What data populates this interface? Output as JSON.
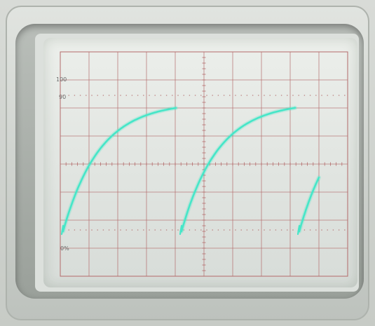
{
  "graticule_labels": {
    "label_100": "100",
    "label_90": "90",
    "label_0pct": "0%"
  },
  "trace_color": "#46e6c8",
  "graticule_color": "#b36a6a"
}
